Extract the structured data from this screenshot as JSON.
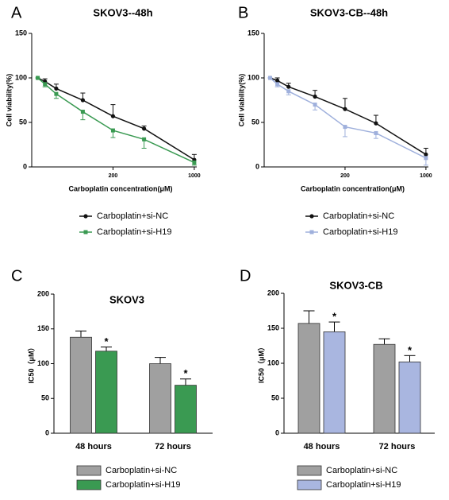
{
  "chart_data": [
    {
      "type": "line",
      "label": "A",
      "title": "SKOV3--48h",
      "xlabel": "Carboplatin concentration(μM)",
      "ylabel": "Cell viability(%)",
      "xlog": true,
      "xlim": [
        40,
        1050
      ],
      "xticks": [
        200,
        1000
      ],
      "ylim": [
        0,
        150
      ],
      "yticks": [
        0,
        50,
        100,
        150
      ],
      "x": [
        45,
        52,
        65,
        110,
        200,
        370,
        1000
      ],
      "series": [
        {
          "name": "Carboplatin+si-NC",
          "color": "#111111",
          "marker": "circle",
          "values": [
            100,
            96,
            88,
            75,
            57,
            43,
            8
          ],
          "errors": [
            0,
            3,
            5,
            8,
            13,
            3,
            6
          ]
        },
        {
          "name": "Carboplatin+si-H19",
          "color": "#3a9a52",
          "marker": "square",
          "values": [
            100,
            93,
            82,
            62,
            41,
            31,
            5
          ],
          "errors": [
            0,
            3,
            5,
            9,
            8,
            10,
            3
          ]
        }
      ]
    },
    {
      "type": "line",
      "label": "B",
      "title": "SKOV3-CB--48h",
      "xlabel": "Carboplatin concentration(μM)",
      "ylabel": "Cell viability(%)",
      "xlog": true,
      "xlim": [
        40,
        1050
      ],
      "xticks": [
        200,
        1000
      ],
      "ylim": [
        0,
        150
      ],
      "yticks": [
        0,
        50,
        100,
        150
      ],
      "x": [
        45,
        52,
        65,
        110,
        200,
        370,
        1000
      ],
      "series": [
        {
          "name": "Carboplatin+si-NC",
          "color": "#111111",
          "marker": "circle",
          "values": [
            100,
            97,
            90,
            79,
            65,
            49,
            14
          ],
          "errors": [
            0,
            3,
            4,
            7,
            12,
            9,
            7
          ]
        },
        {
          "name": "Carboplatin+si-H19",
          "color": "#9fb0dc",
          "marker": "square",
          "values": [
            100,
            93,
            85,
            70,
            45,
            38,
            10
          ],
          "errors": [
            0,
            3,
            4,
            6,
            11,
            6,
            8
          ]
        }
      ]
    },
    {
      "type": "bar",
      "label": "C",
      "title": "SKOV3",
      "ylabel": "IC50（μM）",
      "categories": [
        "48 hours",
        "72 hours"
      ],
      "ylim": [
        0,
        200
      ],
      "yticks": [
        0,
        50,
        100,
        150,
        200
      ],
      "series": [
        {
          "name": "Carboplatin+si-NC",
          "color": "#a0a0a0",
          "values": [
            138,
            100
          ],
          "errors": [
            9,
            9
          ]
        },
        {
          "name": "Carboplatin+si-H19",
          "color": "#3a9a52",
          "values": [
            118,
            69
          ],
          "errors": [
            6,
            9
          ],
          "significance": [
            "*",
            "*"
          ]
        }
      ]
    },
    {
      "type": "bar",
      "label": "D",
      "title": "SKOV3-CB",
      "ylabel": "IC50（μM）",
      "categories": [
        "48 hours",
        "72 hours"
      ],
      "ylim": [
        0,
        200
      ],
      "yticks": [
        0,
        50,
        100,
        150,
        200
      ],
      "series": [
        {
          "name": "Carboplatin+si-NC",
          "color": "#a0a0a0",
          "values": [
            157,
            127
          ],
          "errors": [
            18,
            8
          ]
        },
        {
          "name": "Carboplatin+si-H19",
          "color": "#a9b6e0",
          "values": [
            145,
            102
          ],
          "errors": [
            14,
            9
          ],
          "significance": [
            "*",
            "*"
          ]
        }
      ]
    }
  ]
}
